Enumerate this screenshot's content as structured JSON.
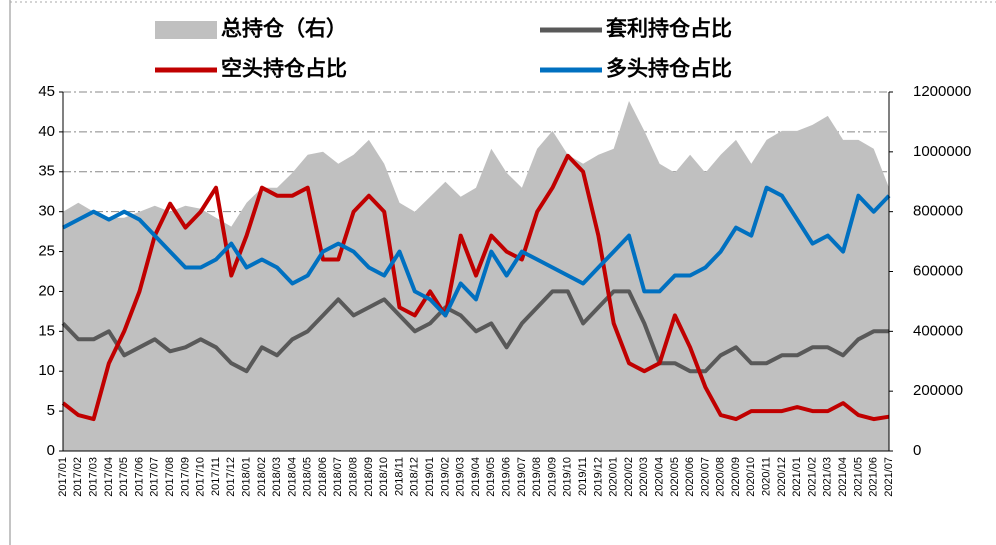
{
  "chart_data": {
    "type": "line",
    "categories": [
      "2017/01",
      "2017/02",
      "2017/03",
      "2017/04",
      "2017/05",
      "2017/06",
      "2017/07",
      "2017/08",
      "2017/09",
      "2017/10",
      "2017/11",
      "2017/12",
      "2018/01",
      "2018/02",
      "2018/03",
      "2018/04",
      "2018/05",
      "2018/06",
      "2018/07",
      "2018/08",
      "2018/09",
      "2018/10",
      "2018/11",
      "2018/12",
      "2019/01",
      "2019/02",
      "2019/03",
      "2019/04",
      "2019/05",
      "2019/06",
      "2019/07",
      "2019/08",
      "2019/09",
      "2019/10",
      "2019/11",
      "2019/12",
      "2020/01",
      "2020/02",
      "2020/03",
      "2020/04",
      "2020/05",
      "2020/06",
      "2020/07",
      "2020/08",
      "2020/09",
      "2020/10",
      "2020/11",
      "2020/12",
      "2021/01",
      "2021/02",
      "2021/03",
      "2021/04",
      "2021/05",
      "2021/06",
      "2021/07"
    ],
    "series": [
      {
        "name": "总持仓（右）",
        "color": "#c0c0c0",
        "axis": "y2",
        "kind": "area",
        "values": [
          800000,
          830000,
          800000,
          780000,
          780000,
          800000,
          820000,
          800000,
          820000,
          810000,
          780000,
          750000,
          830000,
          880000,
          880000,
          930000,
          990000,
          1000000,
          960000,
          990000,
          1040000,
          960000,
          830000,
          800000,
          850000,
          900000,
          850000,
          880000,
          1010000,
          930000,
          880000,
          1010000,
          1070000,
          990000,
          960000,
          990000,
          1010000,
          1170000,
          1070000,
          960000,
          930000,
          990000,
          930000,
          990000,
          1040000,
          960000,
          1040000,
          1070000,
          1070000,
          1090000,
          1120000,
          1040000,
          1040000,
          1010000,
          880000
        ]
      },
      {
        "name": "套利持仓占比",
        "color": "#595959",
        "values": [
          16,
          14,
          14,
          15,
          12,
          13,
          14,
          12.5,
          13,
          14,
          13,
          11,
          10,
          13,
          12,
          14,
          15,
          17,
          19,
          17,
          18,
          19,
          17,
          15,
          16,
          18,
          17,
          15,
          16,
          13,
          16,
          18,
          20,
          20,
          16,
          18,
          20,
          20,
          16,
          11,
          11,
          10,
          10,
          12,
          13,
          11,
          11,
          12,
          12,
          13,
          13,
          12,
          14,
          15,
          15
        ]
      },
      {
        "name": "空头持仓占比",
        "color": "#c00000",
        "values": [
          6,
          4.5,
          4,
          11,
          15,
          20,
          27,
          31,
          28,
          30,
          33,
          22,
          27,
          33,
          32,
          32,
          33,
          24,
          24,
          30,
          32,
          30,
          18,
          17,
          20,
          17,
          27,
          22,
          27,
          25,
          24,
          30,
          33,
          37,
          35,
          27,
          16,
          11,
          10,
          11,
          17,
          13,
          8,
          4.5,
          4,
          5,
          5,
          5,
          5.5,
          5,
          5,
          6,
          4.5,
          4,
          4.3
        ]
      },
      {
        "name": "多头持仓占比",
        "color": "#0070c0",
        "values": [
          28,
          29,
          30,
          29,
          30,
          29,
          27,
          25,
          23,
          23,
          24,
          26,
          23,
          24,
          23,
          21,
          22,
          25,
          26,
          25,
          23,
          22,
          25,
          20,
          19,
          17,
          21,
          19,
          25,
          22,
          25,
          24,
          23,
          22,
          21,
          23,
          25,
          27,
          20,
          20,
          22,
          22,
          23,
          25,
          28,
          27,
          33,
          32,
          29,
          26,
          27,
          25,
          32,
          30,
          32
        ]
      }
    ],
    "ylim": [
      0,
      45
    ],
    "yticks": [
      0,
      5,
      10,
      15,
      20,
      25,
      30,
      35,
      40,
      45
    ],
    "y2lim": [
      0,
      1200000
    ],
    "y2ticks": [
      0,
      200000,
      400000,
      600000,
      800000,
      1000000,
      1200000
    ],
    "grid": true
  }
}
